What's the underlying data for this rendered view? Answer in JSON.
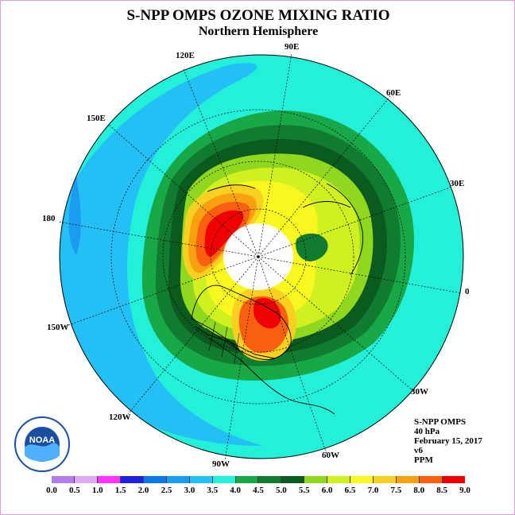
{
  "header": {
    "title": "S-NPP OMPS OZONE MIXING RATIO",
    "subtitle": "Northern Hemisphere"
  },
  "longitude_labels": [
    "90E",
    "60E",
    "30E",
    "0",
    "30W",
    "60W",
    "90W",
    "120W",
    "150W",
    "180",
    "150E",
    "120E"
  ],
  "info": {
    "instrument": "S-NPP OMPS",
    "level": "40 hPa",
    "date": "February 15, 2017",
    "version": "v6",
    "units": "PPM"
  },
  "logo": {
    "text": "NOAA",
    "icon": "noaa-logo-icon"
  },
  "colorbar": {
    "ticks": [
      "0.0",
      "0.5",
      "1.0",
      "1.5",
      "2.0",
      "2.5",
      "3.0",
      "3.5",
      "4.0",
      "4.5",
      "5.0",
      "5.5",
      "6.0",
      "6.5",
      "7.0",
      "7.5",
      "8.0",
      "8.5",
      "9.0"
    ],
    "colors": [
      "#b57cf0",
      "#e0aaf0",
      "#ff33ff",
      "#2020e0",
      "#0a7ae6",
      "#1c9cf0",
      "#22c0f5",
      "#22f0d8",
      "#18a848",
      "#107c30",
      "#0b5a20",
      "#90d820",
      "#d0f020",
      "#f8f820",
      "#f8d020",
      "#f8a010",
      "#f86010",
      "#f00000",
      "#8b5a3c"
    ]
  }
}
